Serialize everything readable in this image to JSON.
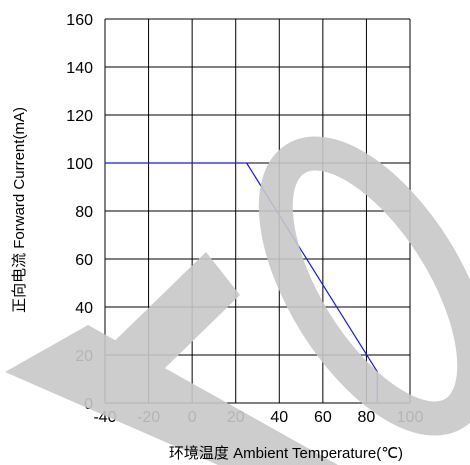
{
  "chart_data": {
    "type": "line",
    "title": "",
    "xlabel": "环境温度  Ambient Temperature(℃)",
    "ylabel": "正向电流 Forward Current(mA)",
    "xlim": [
      -40,
      100
    ],
    "ylim": [
      0,
      160
    ],
    "x_ticks": [
      "-40",
      "-20",
      "0",
      "20",
      "40",
      "60",
      "80",
      "100"
    ],
    "y_ticks": [
      "0",
      "20",
      "40",
      "60",
      "80",
      "100",
      "120",
      "140",
      "160"
    ],
    "grid": true,
    "legend": "none",
    "series": [
      {
        "color": "#1a1adb",
        "x": [
          -40,
          25,
          85,
          85
        ],
        "y": [
          100,
          100,
          13,
          0
        ]
      }
    ]
  },
  "watermark": {
    "text": "TO",
    "color": "#c8c8c8"
  }
}
